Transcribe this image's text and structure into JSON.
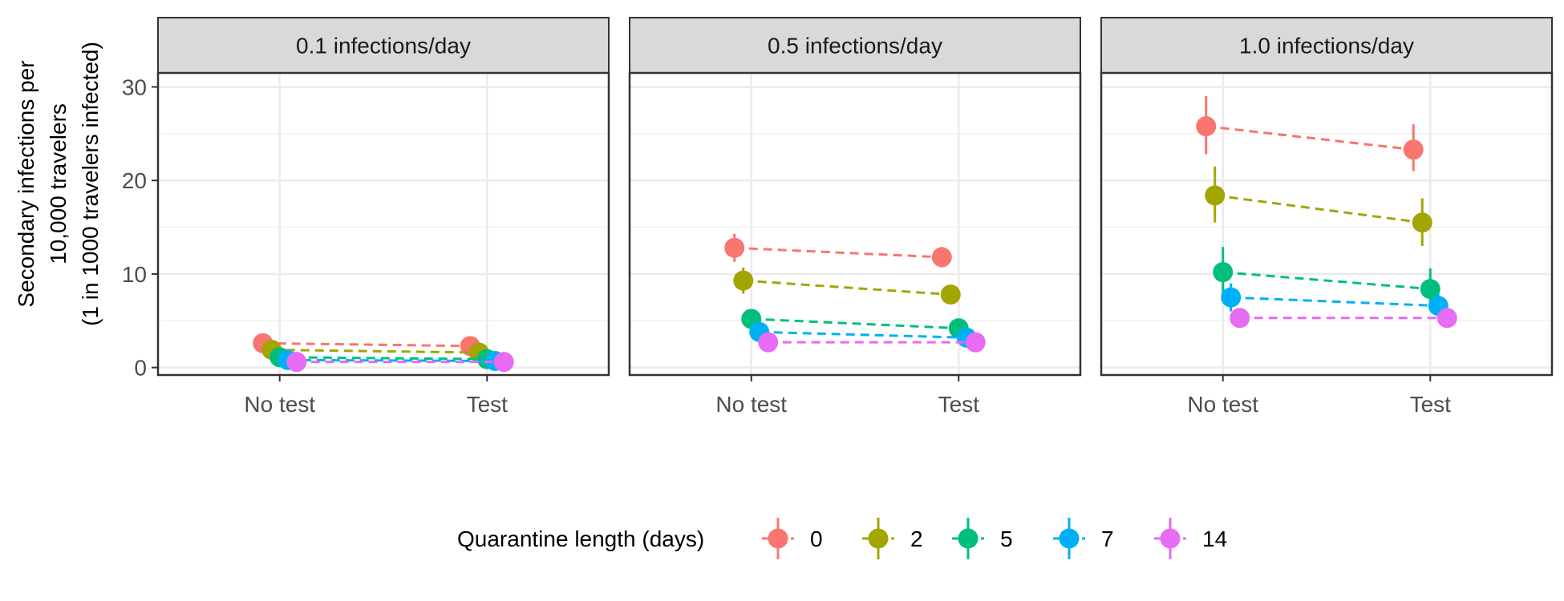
{
  "chart_data": {
    "type": "scatter",
    "ylabel_lines": [
      "Secondary infections per",
      "10,000 travelers",
      "(1 in 1000 travelers infected)"
    ],
    "xlabel": "",
    "categories": [
      "No test",
      "Test"
    ],
    "ylim": [
      -0.8,
      31.5
    ],
    "yticks": [
      0,
      10,
      20,
      30
    ],
    "grid": true,
    "legend": {
      "title": "Quarantine length (days)",
      "position": "bottom",
      "entries": [
        "0",
        "2",
        "5",
        "7",
        "14"
      ]
    },
    "colors": {
      "0": "#F8766D",
      "2": "#A3A500",
      "5": "#00BF7D",
      "7": "#00B0F6",
      "14": "#E76BF3"
    },
    "panels": [
      {
        "title": "0.1 infections/day",
        "series": [
          {
            "name": "0",
            "values": [
              2.6,
              2.3
            ],
            "lower": [
              2.0,
              1.7
            ],
            "upper": [
              3.2,
              2.9
            ]
          },
          {
            "name": "2",
            "values": [
              1.9,
              1.6
            ],
            "lower": [
              1.4,
              1.1
            ],
            "upper": [
              2.4,
              2.1
            ]
          },
          {
            "name": "5",
            "values": [
              1.1,
              0.9
            ],
            "lower": [
              0.8,
              0.6
            ],
            "upper": [
              1.4,
              1.2
            ]
          },
          {
            "name": "7",
            "values": [
              0.8,
              0.7
            ],
            "lower": [
              0.5,
              0.4
            ],
            "upper": [
              1.1,
              1.0
            ]
          },
          {
            "name": "14",
            "values": [
              0.6,
              0.6
            ],
            "lower": [
              0.4,
              0.4
            ],
            "upper": [
              0.8,
              0.8
            ]
          }
        ]
      },
      {
        "title": "0.5 infections/day",
        "series": [
          {
            "name": "0",
            "values": [
              12.8,
              11.8
            ],
            "lower": [
              11.3,
              10.7
            ],
            "upper": [
              14.3,
              12.9
            ]
          },
          {
            "name": "2",
            "values": [
              9.3,
              7.8
            ],
            "lower": [
              7.9,
              6.8
            ],
            "upper": [
              10.7,
              8.8
            ]
          },
          {
            "name": "5",
            "values": [
              5.2,
              4.2
            ],
            "lower": [
              4.2,
              3.4
            ],
            "upper": [
              6.2,
              5.0
            ]
          },
          {
            "name": "7",
            "values": [
              3.8,
              3.2
            ],
            "lower": [
              3.1,
              2.6
            ],
            "upper": [
              4.5,
              3.8
            ]
          },
          {
            "name": "14",
            "values": [
              2.7,
              2.7
            ],
            "lower": [
              2.2,
              2.2
            ],
            "upper": [
              3.2,
              3.2
            ]
          }
        ]
      },
      {
        "title": "1.0 infections/day",
        "series": [
          {
            "name": "0",
            "values": [
              25.8,
              23.3
            ],
            "lower": [
              22.8,
              21.0
            ],
            "upper": [
              29.0,
              26.0
            ]
          },
          {
            "name": "2",
            "values": [
              18.4,
              15.5
            ],
            "lower": [
              15.5,
              13.0
            ],
            "upper": [
              21.5,
              18.1
            ]
          },
          {
            "name": "5",
            "values": [
              10.2,
              8.4
            ],
            "lower": [
              7.9,
              6.7
            ],
            "upper": [
              12.9,
              10.6
            ]
          },
          {
            "name": "7",
            "values": [
              7.5,
              6.6
            ],
            "lower": [
              6.0,
              5.3
            ],
            "upper": [
              9.0,
              7.9
            ]
          },
          {
            "name": "14",
            "values": [
              5.3,
              5.3
            ],
            "lower": [
              4.3,
              4.3
            ],
            "upper": [
              6.3,
              6.3
            ]
          }
        ]
      }
    ]
  }
}
